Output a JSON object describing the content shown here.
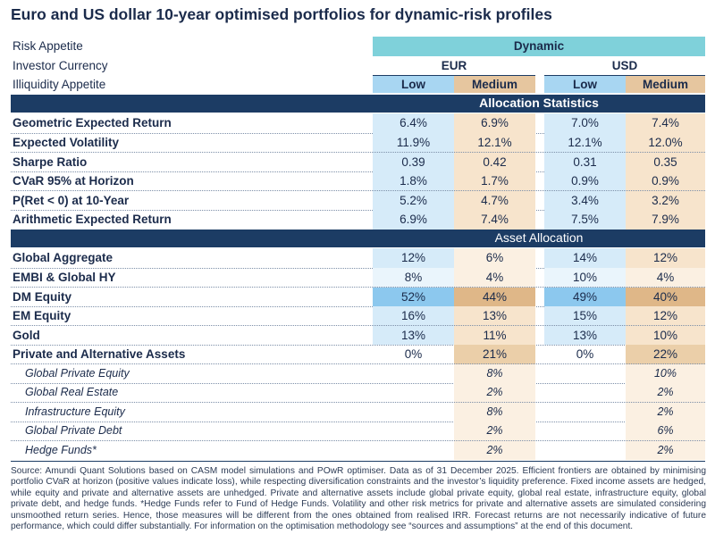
{
  "title": "Euro and US dollar 10-year optimised portfolios for dynamic-risk profiles",
  "header": {
    "risk_label": "Risk Appetite",
    "risk_value": "Dynamic",
    "currency_label": "Investor Currency",
    "currency_eur": "EUR",
    "currency_usd": "USD",
    "illiquidity_label": "Illiquidity Appetite",
    "columns": [
      "Low",
      "Medium",
      "Low",
      "Medium"
    ]
  },
  "allocation_statistics": {
    "title": "Allocation Statistics",
    "rows": [
      {
        "label": "Geometric Expected Return",
        "values": [
          "6.4%",
          "6.9%",
          "7.0%",
          "7.4%"
        ]
      },
      {
        "label": "Expected Volatility",
        "values": [
          "11.9%",
          "12.1%",
          "12.1%",
          "12.0%"
        ]
      },
      {
        "label": "Sharpe Ratio",
        "values": [
          "0.39",
          "0.42",
          "0.31",
          "0.35"
        ]
      },
      {
        "label": "CVaR 95% at Horizon",
        "values": [
          "1.8%",
          "1.7%",
          "0.9%",
          "0.9%"
        ]
      },
      {
        "label": "P(Ret < 0) at 10-Year",
        "values": [
          "5.2%",
          "4.7%",
          "3.4%",
          "3.2%"
        ]
      },
      {
        "label": "Arithmetic Expected Return",
        "values": [
          "6.9%",
          "7.4%",
          "7.5%",
          "7.9%"
        ]
      }
    ]
  },
  "asset_allocation": {
    "title": "Asset Allocation",
    "rows": [
      {
        "label": "Global Aggregate",
        "values": [
          "12%",
          "6%",
          "14%",
          "12%"
        ]
      },
      {
        "label": "EMBI & Global HY",
        "values": [
          "8%",
          "4%",
          "10%",
          "4%"
        ]
      },
      {
        "label": "DM Equity",
        "values": [
          "52%",
          "44%",
          "49%",
          "40%"
        ]
      },
      {
        "label": "EM Equity",
        "values": [
          "16%",
          "13%",
          "15%",
          "12%"
        ]
      },
      {
        "label": "Gold",
        "values": [
          "13%",
          "11%",
          "13%",
          "10%"
        ]
      },
      {
        "label": "Private and Alternative Assets",
        "values": [
          "0%",
          "21%",
          "0%",
          "22%"
        ]
      }
    ],
    "sub_rows": [
      {
        "label": "Global Private Equity",
        "medium_eur": "8%",
        "medium_usd": "10%"
      },
      {
        "label": "Global Real Estate",
        "medium_eur": "2%",
        "medium_usd": "2%"
      },
      {
        "label": "Infrastructure Equity",
        "medium_eur": "8%",
        "medium_usd": "2%"
      },
      {
        "label": "Global Private Debt",
        "medium_eur": "2%",
        "medium_usd": "6%"
      },
      {
        "label": "Hedge Funds*",
        "medium_eur": "2%",
        "medium_usd": "2%"
      }
    ]
  },
  "footnote": "Source: Amundi Quant Solutions based on CASM model simulations and POwR optimiser. Data as of 31 December 2025. Efficient frontiers are obtained by minimising portfolio CVaR at horizon (positive values indicate loss),  while respecting diversification constraints and the investor’s liquidity preference. Fixed income assets are hedged, while equity and private and alternative assets are unhedged. Private and alternative assets include global private equity, global real estate, infrastructure equity, global private debt, and hedge funds. *Hedge Funds refer to Fund of Hedge Funds. Volatility and other risk metrics for private and alternative assets are simulated considering unsmoothed return series. Hence, those measures will be different from the ones obtained from realised IRR. Forecast returns are not necessarily indicative of future performance, which could differ substantially. For information on the optimisation methodology see “sources and assumptions” at the end of this document."
}
